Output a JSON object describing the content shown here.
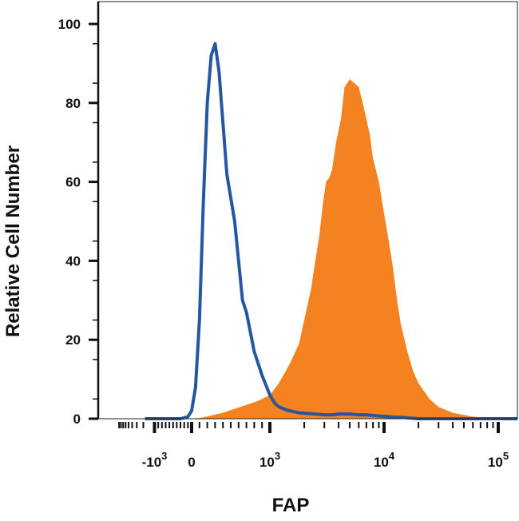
{
  "chart_data": {
    "type": "area",
    "xlabel": "FAP",
    "ylabel": "Relative Cell Number",
    "ylim": [
      0,
      100
    ],
    "x_scale": "biexponential",
    "x_ticks": [
      {
        "value": -1000,
        "base": "-10",
        "exp": "3"
      },
      {
        "value": 0,
        "base": "0",
        "exp": ""
      },
      {
        "value": 1000,
        "base": "10",
        "exp": "3"
      },
      {
        "value": 10000,
        "base": "10",
        "exp": "4"
      },
      {
        "value": 100000,
        "base": "10",
        "exp": "5"
      }
    ],
    "y_ticks": [
      0,
      20,
      40,
      60,
      80,
      100
    ],
    "grid": false,
    "series": [
      {
        "style": "filled",
        "color": "#f58220",
        "x": [
          -1800,
          0,
          150,
          250,
          400,
          550,
          700,
          850,
          1000,
          1200,
          1500,
          1800,
          2000,
          2300,
          2500,
          2700,
          2900,
          3100,
          3300,
          3500,
          3800,
          4200,
          4500,
          5000,
          5500,
          6000,
          6500,
          7000,
          7500,
          8000,
          9000,
          10000,
          11000,
          12000,
          13000,
          14000,
          16000,
          18000,
          20000,
          25000,
          30000,
          40000,
          60000,
          100000,
          180000
        ],
        "y": [
          0,
          0,
          0.3,
          0.8,
          1.5,
          2.5,
          3.5,
          4.5,
          6,
          9,
          14,
          19,
          25,
          33,
          40,
          46,
          54,
          60,
          61,
          63,
          70,
          76,
          84,
          86,
          85,
          84,
          80,
          76,
          72,
          66,
          60,
          52,
          45,
          38,
          30,
          24,
          17,
          12,
          9,
          5,
          3,
          1.5,
          0.5,
          0,
          0
        ]
      },
      {
        "style": "line",
        "color": "#2457a0",
        "x": [
          -1800,
          -300,
          -100,
          0,
          50,
          100,
          150,
          200,
          250,
          300,
          350,
          400,
          450,
          500,
          550,
          600,
          650,
          700,
          750,
          800,
          900,
          1000,
          1100,
          1200,
          1400,
          1600,
          1800,
          2000,
          2500,
          3000,
          3500,
          4000,
          5000,
          6000,
          7000,
          8000,
          10000,
          12000,
          15000,
          20000,
          50000,
          180000
        ],
        "y": [
          0,
          0,
          0.5,
          2,
          8,
          25,
          55,
          80,
          92,
          95,
          88,
          75,
          62,
          56,
          50,
          40,
          30,
          27,
          22,
          17,
          11,
          6,
          4,
          3,
          2.2,
          1.8,
          1.5,
          1.4,
          1.2,
          1.0,
          1.0,
          1.2,
          1.2,
          1.0,
          1.0,
          0.8,
          0.6,
          0.4,
          0.3,
          0,
          0,
          0
        ]
      }
    ]
  }
}
